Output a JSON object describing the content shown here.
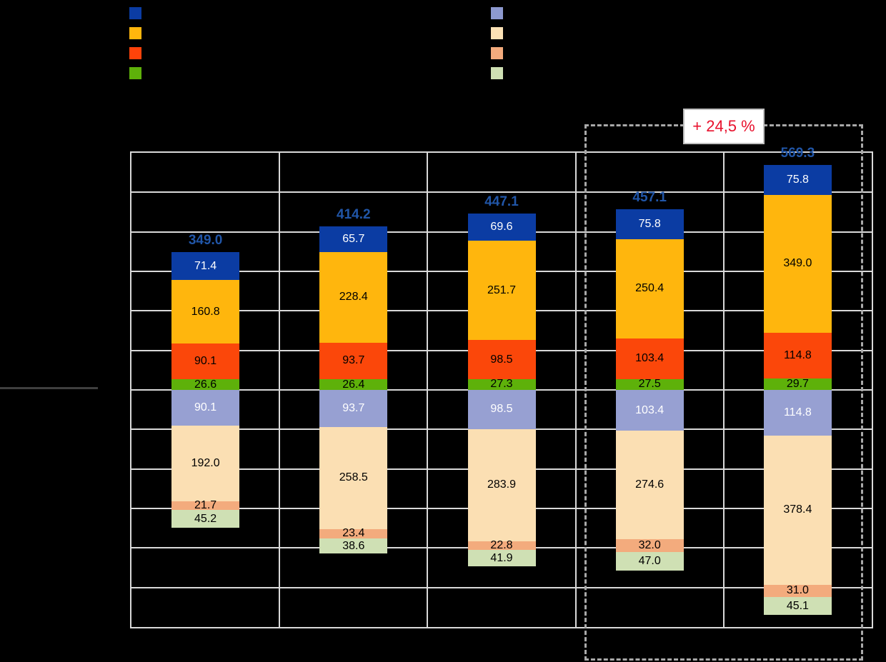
{
  "legend_left": {
    "items": [
      {
        "label": "",
        "color": "#0b3ca3"
      },
      {
        "label": "",
        "color": "#ffb60d"
      },
      {
        "label": "",
        "color": "#ff430a"
      },
      {
        "label": "",
        "color": "#5eb10a"
      }
    ]
  },
  "legend_right": {
    "items": [
      {
        "label": "",
        "color": "#8d99cf"
      },
      {
        "label": "",
        "color": "#fce2b6"
      },
      {
        "label": "",
        "color": "#f3ab7d"
      },
      {
        "label": "",
        "color": "#cfe0b4"
      }
    ]
  },
  "annotation": {
    "delta_label": "+ 24,5 %",
    "text_color": "#e8112d"
  },
  "chart_data": {
    "type": "bar",
    "stacked": true,
    "diverging": true,
    "categories": [
      "",
      "",
      "",
      "",
      ""
    ],
    "totals": [
      349.0,
      414.2,
      447.1,
      457.1,
      569.3
    ],
    "totals_label_color": "#2156a8",
    "series_above": [
      {
        "name": "dark-blue",
        "color": "#0b3ca3",
        "text_color": "#ffffff",
        "values": [
          71.4,
          65.7,
          69.6,
          75.8,
          75.8
        ]
      },
      {
        "name": "amber",
        "color": "#ffb60d",
        "text_color": "#000000",
        "values": [
          160.8,
          228.4,
          251.7,
          250.4,
          349.0
        ]
      },
      {
        "name": "orange-red",
        "color": "#fb470a",
        "text_color": "#000000",
        "values": [
          90.1,
          93.7,
          98.5,
          103.4,
          114.8
        ]
      },
      {
        "name": "green",
        "color": "#5eb10a",
        "text_color": "#000000",
        "values": [
          26.6,
          26.4,
          27.3,
          27.5,
          29.7
        ]
      }
    ],
    "series_below": [
      {
        "name": "light-purple",
        "color": "#97a0d2",
        "text_color": "#ffffff",
        "values": [
          90.1,
          93.7,
          98.5,
          103.4,
          114.8
        ]
      },
      {
        "name": "light-peach",
        "color": "#fbdfb3",
        "text_color": "#000000",
        "values": [
          192.0,
          258.5,
          283.9,
          274.6,
          378.4
        ]
      },
      {
        "name": "light-salmon",
        "color": "#f3ab7d",
        "text_color": "#000000",
        "values": [
          21.7,
          23.4,
          22.8,
          32.0,
          31.0
        ]
      },
      {
        "name": "light-green",
        "color": "#cfe0b4",
        "text_color": "#000000",
        "values": [
          45.2,
          38.6,
          41.9,
          47.0,
          45.1
        ]
      }
    ],
    "ylim": [
      -600,
      600
    ],
    "grid_step": 100,
    "highlight": {
      "style": "dashed-rect",
      "covers_last_columns": 2
    }
  }
}
